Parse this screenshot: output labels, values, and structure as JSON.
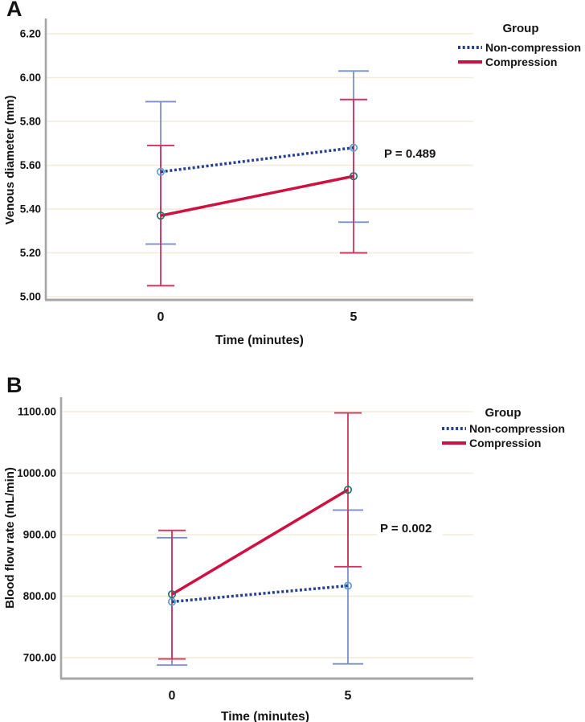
{
  "colors": {
    "background": "#ffffff",
    "gridline": "#f2ecda",
    "axis": "#a6a6a6",
    "text": "#141414",
    "noncompression_line": "#27418f",
    "noncompression_error": "#7b8fc9",
    "noncompression_marker": "#5b9fd8",
    "compression_line": "#ce1141",
    "compression_error": "#d0355e",
    "compression_marker": "#2d6e68"
  },
  "chart_data": [
    {
      "type": "line",
      "panel_label": "A",
      "xlabel": "Time (minutes)",
      "ylabel": "Venous diameter (mm)",
      "categories": [
        "0",
        "5"
      ],
      "y_ticks": [
        "5.00",
        "5.20",
        "5.40",
        "5.60",
        "5.80",
        "6.00",
        "6.20"
      ],
      "ylim": [
        5.0,
        6.2
      ],
      "grid": true,
      "legend_title": "Group",
      "legend_position": "top-right",
      "annotation": "P = 0.489",
      "series": [
        {
          "name": "Non-compression",
          "style": "dotted",
          "line_color": "#27418f",
          "error_color": "#7b8fc9",
          "marker_color": "#5b9fd8",
          "values": [
            5.57,
            5.68
          ],
          "error_low": [
            5.24,
            5.34
          ],
          "error_high": [
            5.89,
            6.03
          ]
        },
        {
          "name": "Compression",
          "style": "solid",
          "line_color": "#ce1141",
          "error_color": "#d0355e",
          "marker_color": "#2d6e68",
          "values": [
            5.37,
            5.55
          ],
          "error_low": [
            5.05,
            5.2
          ],
          "error_high": [
            5.69,
            5.9
          ]
        }
      ]
    },
    {
      "type": "line",
      "panel_label": "B",
      "xlabel": "Time (minutes)",
      "ylabel": "Blood flow rate (mL/min)",
      "categories": [
        "0",
        "5"
      ],
      "y_ticks": [
        "700.00",
        "800.00",
        "900.00",
        "1000.00",
        "1100.00"
      ],
      "ylim": [
        700,
        1100
      ],
      "grid": true,
      "legend_title": "Group",
      "legend_position": "top-right",
      "annotation": "P = 0.002",
      "series": [
        {
          "name": "Non-compression",
          "style": "dotted",
          "line_color": "#27418f",
          "error_color": "#7b8fc9",
          "marker_color": "#5b9fd8",
          "values": [
            791,
            817
          ],
          "error_low": [
            688,
            690
          ],
          "error_high": [
            895,
            940
          ]
        },
        {
          "name": "Compression",
          "style": "solid",
          "line_color": "#ce1141",
          "error_color": "#d0355e",
          "marker_color": "#2d6e68",
          "values": [
            803,
            973
          ],
          "error_low": [
            698,
            848
          ],
          "error_high": [
            907,
            1098
          ]
        }
      ]
    }
  ]
}
